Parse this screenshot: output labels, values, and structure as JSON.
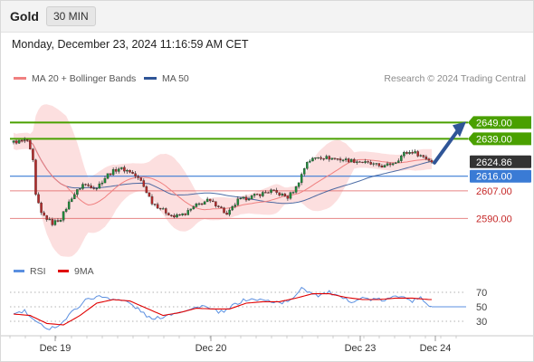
{
  "header": {
    "instrument": "Gold",
    "timeframe": "30 MIN",
    "datetime": "Monday, December 23, 2024 11:16:59 AM CET"
  },
  "legend": {
    "ma20_label": "MA 20 + Bollinger Bands",
    "ma50_label": "MA 50",
    "research": "Research © 2024 Trading Central",
    "rsi_label": "RSI",
    "ma9_label": "9MA"
  },
  "colors": {
    "bollinger_fill": "#fcd9d9",
    "ma20": "#f08080",
    "ma50": "#2f5597",
    "resistance": "#4aa000",
    "pivot": "#3a7bd5",
    "support": "#e06666",
    "candle_up": "#1e8c3a",
    "candle_down": "#b52a2a",
    "current_price_bg": "#333333",
    "rsi": "#5b8fe0",
    "ma9": "#e00000",
    "arrow": "#2f5597"
  },
  "chart_data": {
    "type": "candlestick",
    "instrument": "Gold",
    "timeframe": "30 MIN",
    "ylim": [
      2578,
      2657
    ],
    "x_ticks": [
      "Dec 19",
      "Dec 20",
      "Dec 23",
      "Dec 24"
    ],
    "levels": {
      "resistance": [
        2649.0,
        2639.0
      ],
      "current": 2624.86,
      "pivot": 2616.0,
      "support": [
        2607.0,
        2590.0
      ]
    },
    "level_labels": [
      "2649.00",
      "2639.00",
      "2624.86",
      "2616.00",
      "2607.00",
      "2590.00"
    ],
    "close_anchors": [
      [
        0,
        2637
      ],
      [
        5,
        2638
      ],
      [
        7,
        2625
      ],
      [
        8,
        2604
      ],
      [
        10,
        2593
      ],
      [
        14,
        2587
      ],
      [
        17,
        2590
      ],
      [
        21,
        2603
      ],
      [
        25,
        2611
      ],
      [
        30,
        2609
      ],
      [
        34,
        2617
      ],
      [
        38,
        2621
      ],
      [
        42,
        2619
      ],
      [
        46,
        2613
      ],
      [
        50,
        2600
      ],
      [
        54,
        2595
      ],
      [
        58,
        2591
      ],
      [
        62,
        2593
      ],
      [
        66,
        2598
      ],
      [
        70,
        2601
      ],
      [
        74,
        2598
      ],
      [
        77,
        2592
      ],
      [
        81,
        2601
      ],
      [
        85,
        2603
      ],
      [
        89,
        2605
      ],
      [
        93,
        2607
      ],
      [
        96,
        2605
      ],
      [
        99,
        2603
      ],
      [
        102,
        2609
      ],
      [
        106,
        2625
      ],
      [
        110,
        2628
      ],
      [
        115,
        2627
      ],
      [
        120,
        2626
      ],
      [
        125,
        2625
      ],
      [
        130,
        2623
      ],
      [
        134,
        2622
      ],
      [
        138,
        2625
      ],
      [
        141,
        2630
      ],
      [
        144,
        2631
      ],
      [
        148,
        2628
      ],
      [
        151,
        2625
      ]
    ],
    "rsi": {
      "levels": [
        70,
        50,
        30
      ],
      "ylim": [
        15,
        85
      ],
      "rsi_anchors": [
        [
          0,
          40
        ],
        [
          4,
          44
        ],
        [
          8,
          28
        ],
        [
          13,
          20
        ],
        [
          17,
          26
        ],
        [
          22,
          46
        ],
        [
          27,
          62
        ],
        [
          32,
          64
        ],
        [
          36,
          61
        ],
        [
          41,
          57
        ],
        [
          46,
          44
        ],
        [
          50,
          32
        ],
        [
          55,
          38
        ],
        [
          60,
          44
        ],
        [
          64,
          46
        ],
        [
          68,
          52
        ],
        [
          72,
          45
        ],
        [
          76,
          42
        ],
        [
          80,
          54
        ],
        [
          84,
          60
        ],
        [
          88,
          60
        ],
        [
          92,
          58
        ],
        [
          97,
          56
        ],
        [
          101,
          60
        ],
        [
          104,
          78
        ],
        [
          106,
          72
        ],
        [
          110,
          66
        ],
        [
          114,
          70
        ],
        [
          118,
          62
        ],
        [
          122,
          58
        ],
        [
          126,
          62
        ],
        [
          130,
          60
        ],
        [
          134,
          59
        ],
        [
          138,
          64
        ],
        [
          141,
          66
        ],
        [
          144,
          58
        ],
        [
          147,
          62
        ],
        [
          150,
          52
        ],
        [
          153,
          50
        ]
      ],
      "ma9_anchors": [
        [
          0,
          40
        ],
        [
          6,
          38
        ],
        [
          12,
          27
        ],
        [
          18,
          25
        ],
        [
          24,
          38
        ],
        [
          30,
          55
        ],
        [
          36,
          60
        ],
        [
          42,
          58
        ],
        [
          48,
          48
        ],
        [
          54,
          38
        ],
        [
          60,
          42
        ],
        [
          66,
          48
        ],
        [
          72,
          47
        ],
        [
          78,
          47
        ],
        [
          84,
          55
        ],
        [
          90,
          57
        ],
        [
          96,
          57
        ],
        [
          102,
          62
        ],
        [
          108,
          68
        ],
        [
          114,
          68
        ],
        [
          120,
          63
        ],
        [
          126,
          60
        ],
        [
          132,
          60
        ],
        [
          138,
          62
        ],
        [
          144,
          62
        ],
        [
          150,
          60
        ]
      ]
    }
  }
}
